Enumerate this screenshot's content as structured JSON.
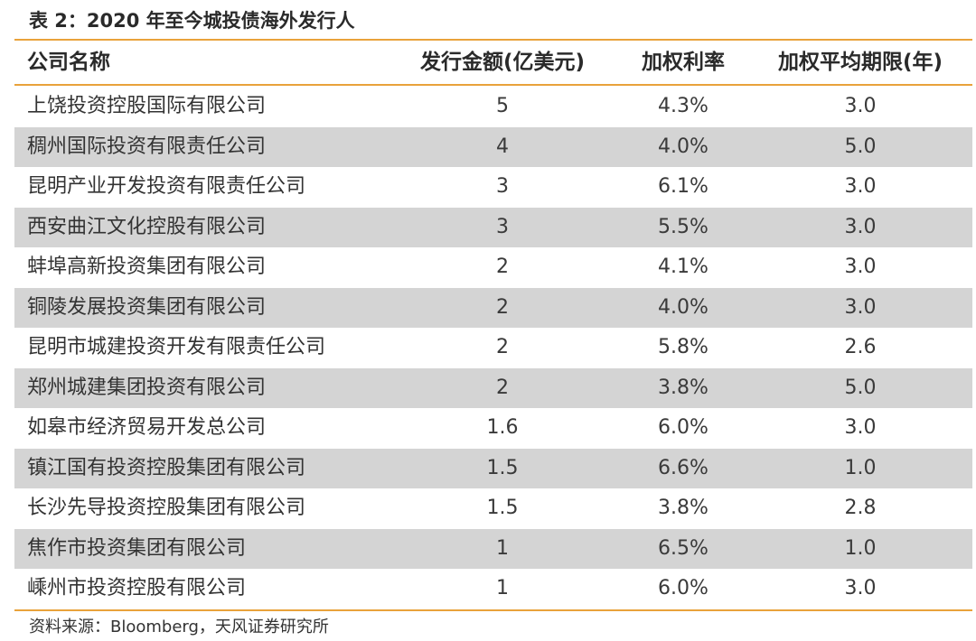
{
  "title": "表 2：2020 年至今城投债海外发行人",
  "table": {
    "headers": [
      "公司名称",
      "发行金额(亿美元)",
      "加权利率",
      "加权平均期限(年)"
    ],
    "rows": [
      [
        "上饶投资控股国际有限公司",
        "5",
        "4.3%",
        "3.0"
      ],
      [
        "稠州国际投资有限责任公司",
        "4",
        "4.0%",
        "5.0"
      ],
      [
        "昆明产业开发投资有限责任公司",
        "3",
        "6.1%",
        "3.0"
      ],
      [
        "西安曲江文化控股有限公司",
        "3",
        "5.5%",
        "3.0"
      ],
      [
        "蚌埠高新投资集团有限公司",
        "2",
        "4.1%",
        "3.0"
      ],
      [
        "铜陵发展投资集团有限公司",
        "2",
        "4.0%",
        "3.0"
      ],
      [
        "昆明市城建投资开发有限责任公司",
        "2",
        "5.8%",
        "2.6"
      ],
      [
        "郑州城建集团投资有限公司",
        "2",
        "3.8%",
        "5.0"
      ],
      [
        "如皋市经济贸易开发总公司",
        "1.6",
        "6.0%",
        "3.0"
      ],
      [
        "镇江国有投资控股集团有限公司",
        "1.5",
        "6.6%",
        "1.0"
      ],
      [
        "长沙先导投资控股集团有限公司",
        "1.5",
        "3.8%",
        "2.8"
      ],
      [
        "焦作市投资集团有限公司",
        "1",
        "6.5%",
        "1.0"
      ],
      [
        "嵊州市投资控股有限公司",
        "1",
        "6.0%",
        "3.0"
      ]
    ]
  },
  "source": "资料来源：Bloomberg，天风证券研究所",
  "colors": {
    "rule_line": "#e9a23b",
    "shaded_row": "#d4d4d4"
  }
}
